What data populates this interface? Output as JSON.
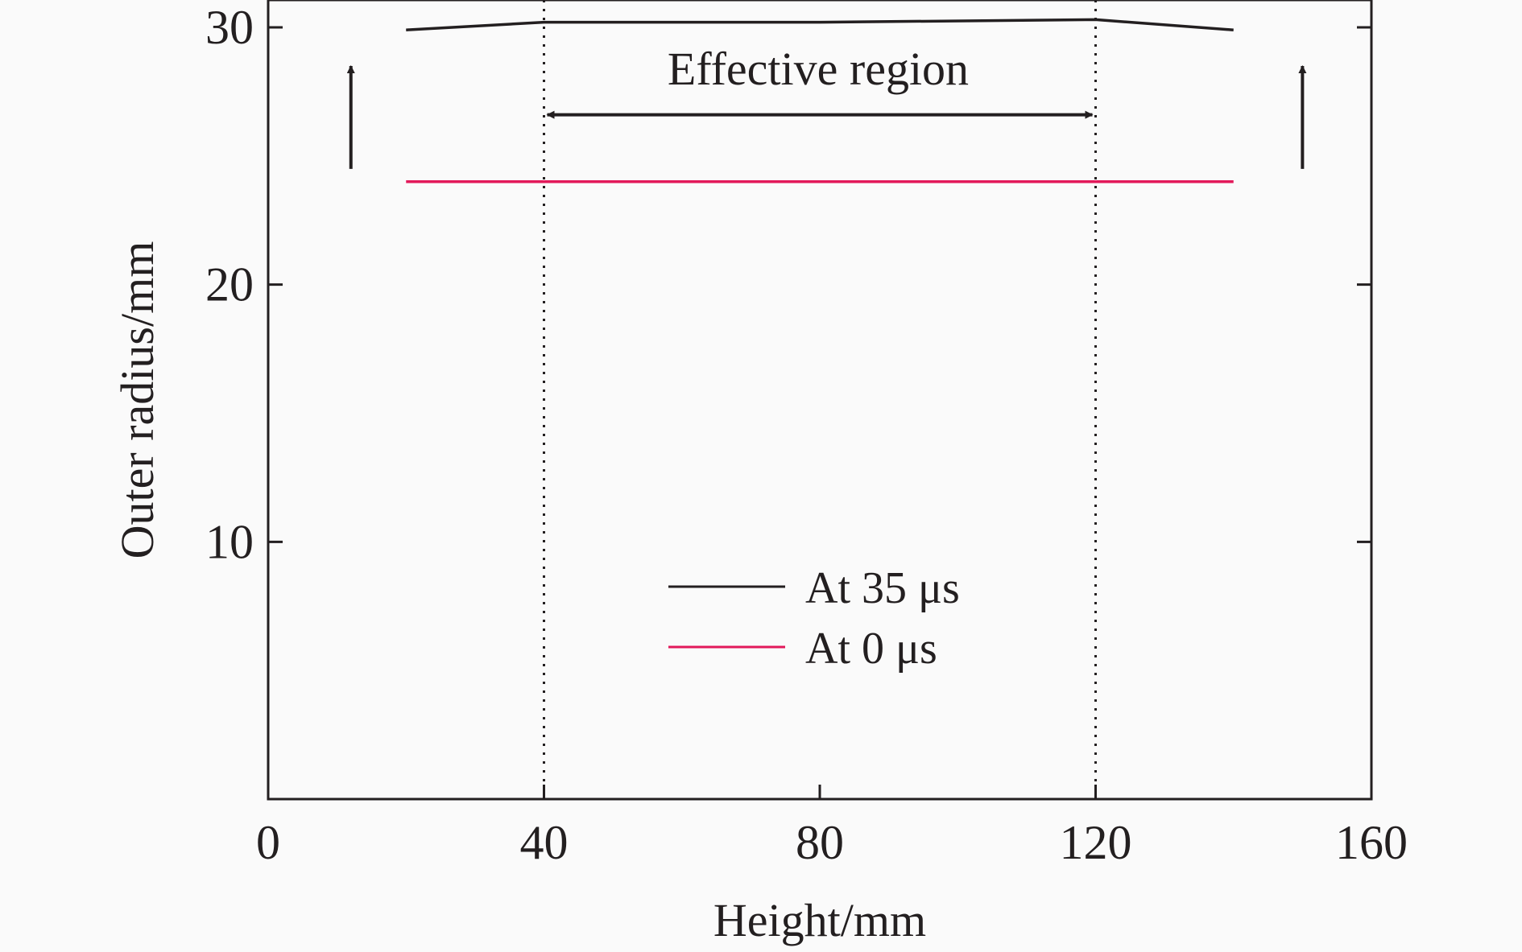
{
  "chart_data": {
    "type": "line",
    "xlabel": "Height/mm",
    "ylabel": "Outer radius/mm",
    "xlim": [
      0,
      160
    ],
    "ylim": [
      0,
      30
    ],
    "xticks": [
      "0",
      "40",
      "80",
      "120",
      "160"
    ],
    "yticks": [
      "10",
      "20",
      "30"
    ],
    "series": [
      {
        "name": "At 35 μs",
        "color": "#231f20",
        "x": [
          20,
          40,
          80,
          120,
          140
        ],
        "y": [
          29.9,
          30.2,
          30.2,
          30.3,
          29.9
        ]
      },
      {
        "name": "At 0 μs",
        "color": "#e2195a",
        "x": [
          20,
          140
        ],
        "y": [
          24.0,
          24.0
        ]
      }
    ],
    "annotations": {
      "region_label": "Effective region",
      "region_start": 40,
      "region_end": 120,
      "region_arrow_y": 26.6,
      "up_arrows_x": [
        12,
        150
      ],
      "up_arrows_y": [
        24.5,
        28.5
      ]
    },
    "legend_position": "lower-center",
    "grid": false
  }
}
